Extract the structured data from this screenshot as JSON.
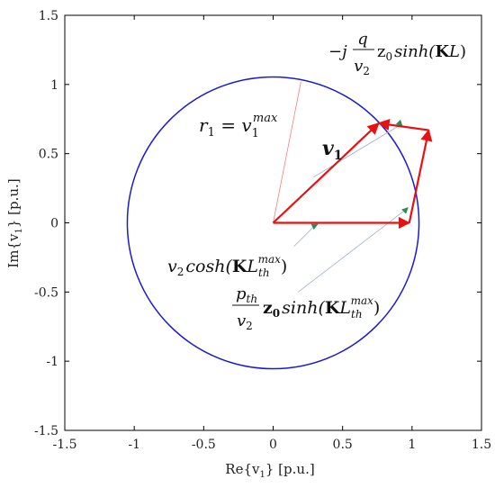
{
  "chart_data": {
    "type": "line",
    "xlabel": "Re{v",
    "xlabel_sub": "1",
    "xlabel_tail": "} [p.u.]",
    "ylabel": "Im{v",
    "ylabel_sub": "1",
    "ylabel_tail": "} [p.u.]",
    "xlim": [
      -1.5,
      1.5
    ],
    "ylim": [
      -1.5,
      1.5
    ],
    "xticks": [
      -1.5,
      -1,
      -0.5,
      0,
      0.5,
      1,
      1.5
    ],
    "xtick_labels": [
      "-1.5",
      "-1",
      "-0.5",
      "0",
      "0.5",
      "1",
      "1.5"
    ],
    "yticks": [
      -1.5,
      -1,
      -0.5,
      0,
      0.5,
      1,
      1.5
    ],
    "ytick_labels": [
      "-1.5",
      "-1",
      "-0.5",
      "0",
      "0.5",
      "1",
      "1.5"
    ],
    "grid": false,
    "circle": {
      "center": [
        0,
        0
      ],
      "radius": 1.05,
      "color": "#1a1ad0"
    },
    "radius_line": {
      "from": [
        0,
        0
      ],
      "to": [
        0.2,
        1.02
      ],
      "color": "#f08080"
    },
    "vectors": [
      {
        "name": "v1",
        "from": [
          0,
          0
        ],
        "to": [
          0.76,
          0.72
        ],
        "color": "#e81010"
      },
      {
        "name": "v2cosh",
        "from": [
          0,
          0
        ],
        "to": [
          0.98,
          0.0
        ],
        "color": "#e81010"
      },
      {
        "name": "pth",
        "from": [
          0.98,
          0.0
        ],
        "to": [
          1.12,
          0.67
        ],
        "color": "#e81010"
      },
      {
        "name": "q",
        "from": [
          1.12,
          0.67
        ],
        "to": [
          0.76,
          0.72
        ],
        "color": "#e81010"
      }
    ],
    "leaders": [
      {
        "from": [
          0.29,
          0.33
        ],
        "to": [
          0.92,
          0.71
        ],
        "tip": [
          0.93,
          0.7
        ],
        "color": "#2e8b57"
      },
      {
        "from": [
          0.15,
          -0.17
        ],
        "to": [
          0.3,
          -0.02
        ],
        "tip": [
          0.32,
          -0.01
        ],
        "color": "#2e8b57"
      },
      {
        "from": [
          0.18,
          -0.5
        ],
        "to": [
          0.96,
          0.1
        ],
        "tip": [
          0.97,
          0.11
        ],
        "color": "#2e8b57"
      }
    ]
  },
  "annotations": {
    "r1": {
      "a": "r",
      "a_sub": "1",
      "eq": " = ",
      "b": "v",
      "b_sub": "1",
      "b_sup": "max"
    },
    "v1": {
      "text": "v",
      "sub": "1"
    },
    "q": {
      "minus": "−j",
      "num": "q",
      "den_v": "v",
      "den_sub": "2",
      "z": "z",
      "z_sub": "0",
      "fn": "sinh(",
      "K": "K",
      "L": "L",
      "close": ")"
    },
    "cosh": {
      "v": "v",
      "v_sub": "2",
      "fn": "cosh(",
      "K": "K",
      "L": "L",
      "L_sub": "th",
      "L_sup": "max",
      "close": ")"
    },
    "pth": {
      "num_p": "p",
      "num_sub": "th",
      "den_v": "v",
      "den_sub": "2",
      "z": "z",
      "z_sub": "0",
      "fn": "sinh(",
      "K": "K",
      "L": "L",
      "L_sub": "th",
      "L_sup": "max",
      "close": ")"
    }
  }
}
